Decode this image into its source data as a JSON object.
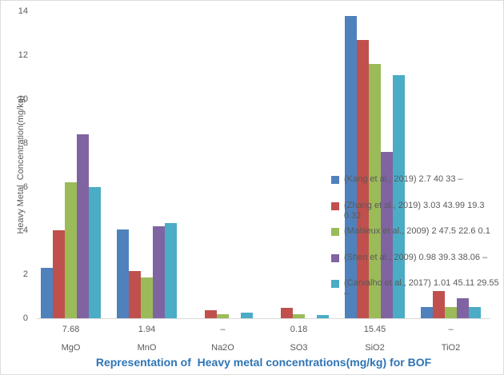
{
  "chart": {
    "caption_color": "#2e74b5",
    "text_color": "#595959"
  },
  "chart_data": {
    "type": "bar",
    "title": "Representation of  Heavy metal concentrations(mg/kg) for BOF",
    "xlabel": "",
    "ylabel": "Heavy Metal  Concentration(mg/kg)",
    "ylim": [
      0,
      14
    ],
    "yticks": [
      0,
      2,
      4,
      6,
      8,
      10,
      12,
      14
    ],
    "grid": false,
    "legend_position": "right-overlay",
    "categories": [
      "MgO",
      "MnO",
      "Na2O",
      "SO3",
      "SiO2",
      "TiO2"
    ],
    "category_value_labels": [
      "7.68",
      "1.94",
      "–",
      "0.18",
      "15.45",
      "–"
    ],
    "series": [
      {
        "name": "(Kang et al., 2019) 2.7 40 33 –",
        "legend_lines": [
          "(Kang et al., 2019) 2.7 40 33 –"
        ],
        "color": "#4F81BD",
        "values": [
          2.3,
          4.05,
          0,
          0,
          13.8,
          0.5
        ]
      },
      {
        "name": "(Zhang et al., 2019) 3.03 43.99 19.3 0.32",
        "legend_lines": [
          "(Zhang et al., 2019) 3.03 43.99 19.3",
          "0.32"
        ],
        "color": "#C0504D",
        "values": [
          4.0,
          2.15,
          0.36,
          0.47,
          12.7,
          1.25
        ]
      },
      {
        "name": "(Mahieux et al., 2009) 2 47.5 22.6 0.1",
        "legend_lines": [
          "(Mahieux et al., 2009) 2 47.5 22.6 0.1"
        ],
        "color": "#9BBB59",
        "values": [
          6.2,
          1.85,
          0.18,
          0.18,
          11.6,
          0.5
        ]
      },
      {
        "name": "(Shen et al., 2009) 0.98 39.3 38.06 –",
        "legend_lines": [
          "(Shen et al., 2009) 0.98 39.3 38.06 –"
        ],
        "color": "#8064A2",
        "values": [
          8.4,
          4.2,
          0,
          0,
          7.6,
          0.9
        ]
      },
      {
        "name": "(Carvalho et al., 2017) 1.01 45.11 29.55 –",
        "legend_lines": [
          "(Carvalho et al., 2017) 1.01 45.11 29.55",
          "–"
        ],
        "color": "#4BACC6",
        "values": [
          6.0,
          4.35,
          0.25,
          0.15,
          11.1,
          0.5
        ]
      }
    ]
  }
}
